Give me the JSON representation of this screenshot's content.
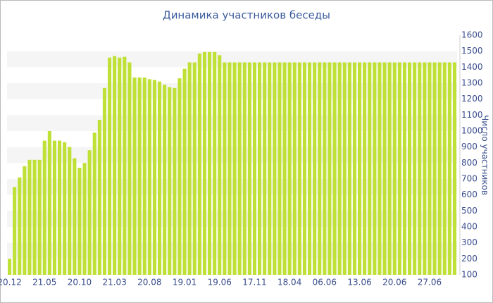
{
  "chart_data": {
    "type": "bar",
    "title": "Динамика участников беседы",
    "y_axis_label": "Число участников",
    "color": "#bfe036",
    "categories": [
      "20.12",
      null,
      null,
      null,
      null,
      null,
      null,
      "21.05",
      null,
      null,
      null,
      null,
      null,
      null,
      "20.10",
      null,
      null,
      null,
      null,
      null,
      null,
      "21.03",
      null,
      null,
      null,
      null,
      null,
      null,
      "20.08",
      null,
      null,
      null,
      null,
      null,
      null,
      "19.01",
      null,
      null,
      null,
      null,
      null,
      null,
      "19.06",
      null,
      null,
      null,
      null,
      null,
      null,
      "17.11",
      null,
      null,
      null,
      null,
      null,
      null,
      "18.04",
      null,
      null,
      null,
      null,
      null,
      null,
      "06.06",
      null,
      null,
      null,
      null,
      null,
      null,
      "13.06",
      null,
      null,
      null,
      null,
      null,
      null,
      "20.06",
      null,
      null,
      null,
      null,
      null,
      null,
      "27.06",
      null,
      null,
      null,
      null,
      null
    ],
    "values": [
      200,
      650,
      710,
      780,
      820,
      820,
      820,
      940,
      1000,
      940,
      940,
      930,
      900,
      830,
      770,
      800,
      880,
      990,
      1070,
      1270,
      1460,
      1470,
      1460,
      1465,
      1430,
      1335,
      1335,
      1335,
      1325,
      1320,
      1310,
      1290,
      1275,
      1270,
      1330,
      1390,
      1430,
      1430,
      1485,
      1495,
      1495,
      1495,
      1475,
      1430,
      1430,
      1430,
      1430,
      1430,
      1430,
      1430,
      1430,
      1430,
      1430,
      1430,
      1430,
      1430,
      1430,
      1430,
      1430,
      1430,
      1430,
      1430,
      1430,
      1430,
      1430,
      1430,
      1430,
      1430,
      1430,
      1430,
      1430,
      1430,
      1430,
      1430,
      1430,
      1430,
      1430,
      1430,
      1430,
      1430,
      1430,
      1430,
      1430,
      1430,
      1430,
      1430,
      1430,
      1430,
      1430,
      1430
    ],
    "ylim": [
      100,
      1600
    ],
    "yticks": [
      100,
      200,
      300,
      400,
      500,
      600,
      700,
      800,
      900,
      1000,
      1100,
      1200,
      1300,
      1400,
      1500,
      1600
    ],
    "y_axis_side": "right",
    "grid": "bands"
  }
}
